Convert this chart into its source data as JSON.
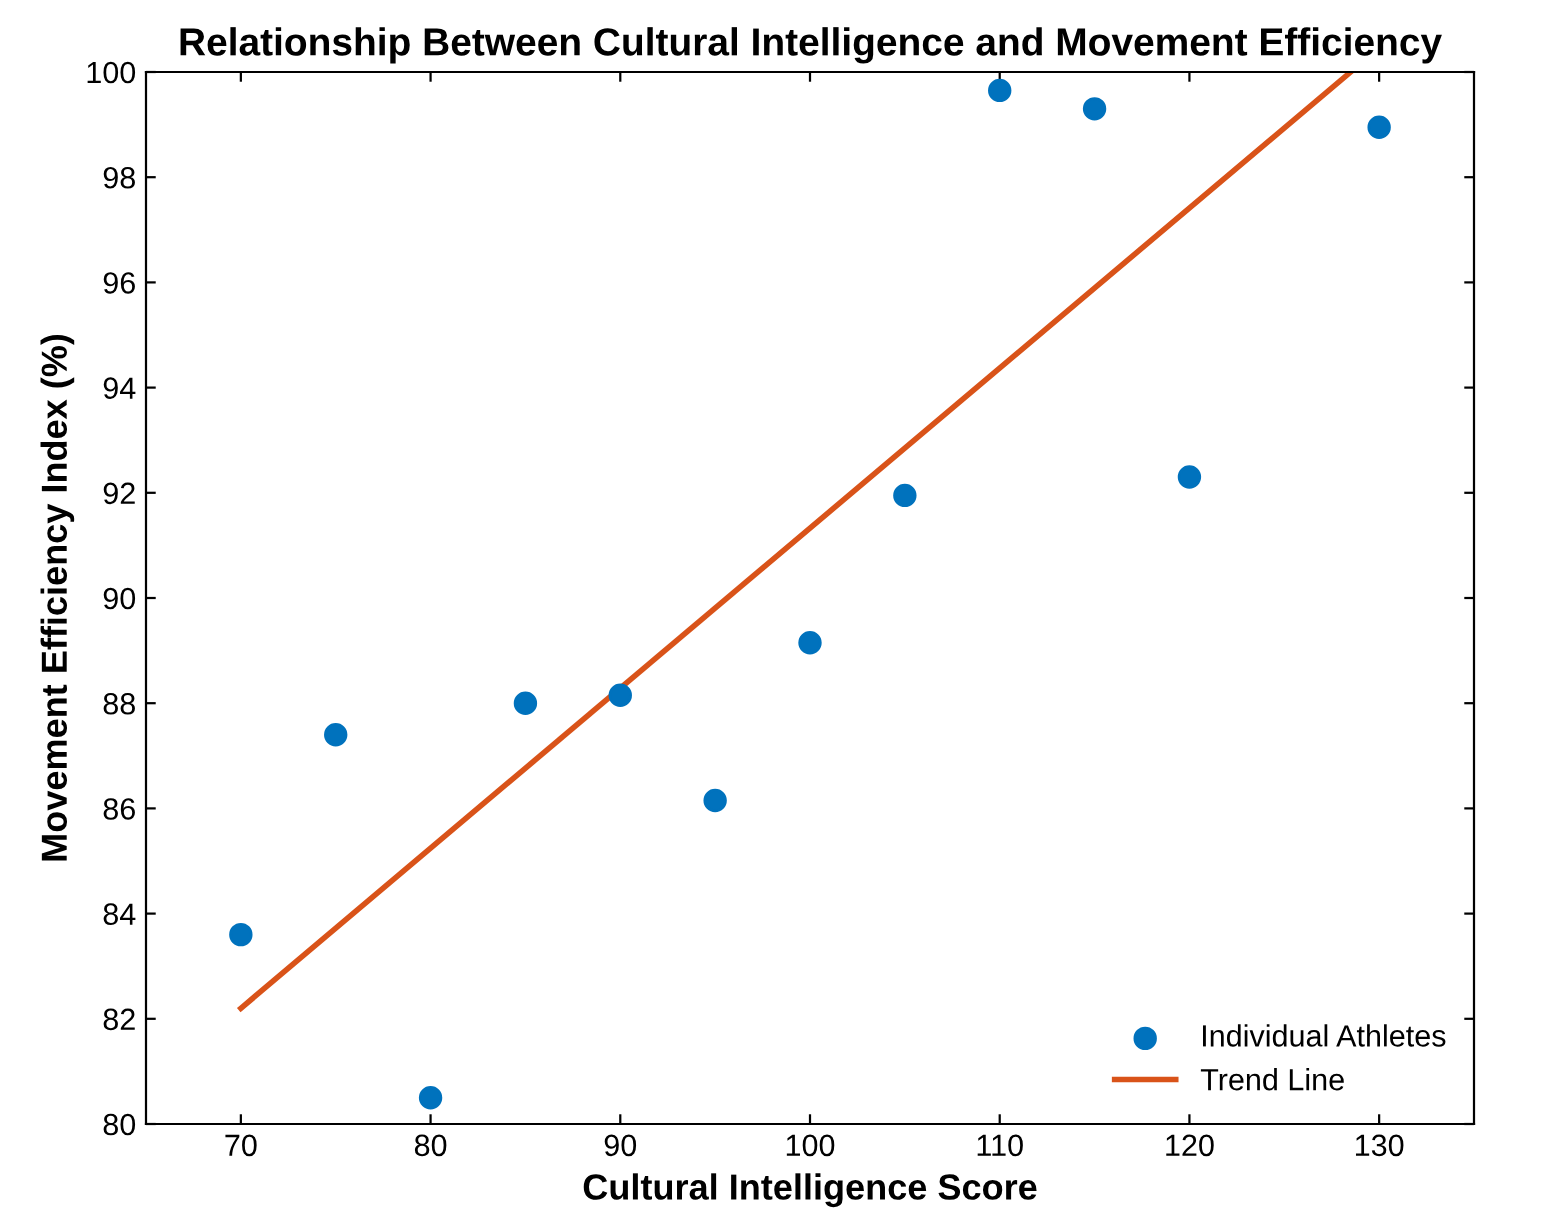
{
  "chart_data": {
    "type": "scatter",
    "title": "Relationship Between Cultural Intelligence and Movement Efficiency",
    "xlabel": "Cultural Intelligence Score",
    "ylabel": "Movement Efficiency Index (%)",
    "xlim": [
      65,
      135
    ],
    "xticks": [
      70,
      80,
      90,
      100,
      110,
      120,
      130
    ],
    "ylim": [
      80,
      100
    ],
    "yticks": [
      80,
      82,
      84,
      86,
      88,
      90,
      92,
      94,
      96,
      98,
      100
    ],
    "grid": false,
    "legend": "bottom right",
    "series": [
      {
        "name": "Individual Athletes",
        "color": "#0072bd",
        "marker": "circle",
        "x": [
          70,
          75,
          80,
          85,
          90,
          95,
          100,
          105,
          110,
          115,
          120,
          130
        ],
        "values": [
          83.6,
          87.4,
          80.5,
          88.0,
          88.15,
          86.15,
          89.15,
          91.95,
          99.65,
          99.3,
          92.3,
          98.95
        ]
      },
      {
        "name": "Trend Line",
        "type": "line",
        "color": "#d95319",
        "line_style": "solid",
        "x": [
          70,
          128.5
        ],
        "values": [
          82.2,
          100
        ]
      }
    ]
  }
}
